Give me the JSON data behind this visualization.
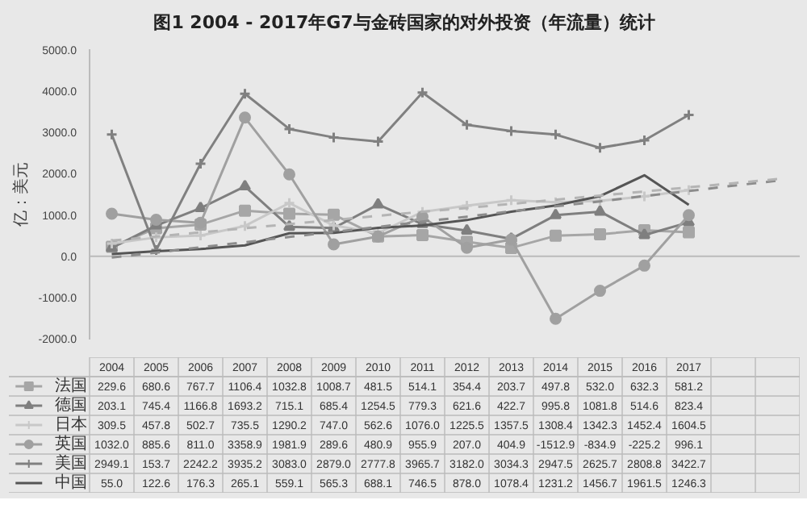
{
  "chart_data": {
    "type": "line",
    "title": "图1 2004 - 2017年G7与金砖国家的对外投资（年流量）统计",
    "ylabel": "亿：美元",
    "categories": [
      "2004",
      "2005",
      "2006",
      "2007",
      "2008",
      "2009",
      "2010",
      "2011",
      "2012",
      "2013",
      "2014",
      "2015",
      "2016",
      "2017",
      null,
      null
    ],
    "ylim": [
      -2000,
      5000
    ],
    "yticks": [
      {
        "value": -2000,
        "label": "-2000.0"
      },
      {
        "value": -1000,
        "label": "-1000.0"
      },
      {
        "value": 0,
        "label": "0.0"
      },
      {
        "value": 1000,
        "label": "1000.0"
      },
      {
        "value": 2000,
        "label": "2000.0"
      },
      {
        "value": 3000,
        "label": "3000.0"
      },
      {
        "value": 4000,
        "label": "4000.0"
      },
      {
        "value": 5000,
        "label": "5000.0"
      }
    ],
    "grid": false,
    "legend": "bottom",
    "ref_lines": [
      {
        "axis": "y",
        "value": 0,
        "color": "#bbbbbb",
        "line_style": "solid"
      }
    ],
    "series": [
      {
        "name": "法国",
        "color": "#a6a6a6",
        "marker": "square",
        "values": [
          229.6,
          680.6,
          767.7,
          1106.4,
          1032.8,
          1008.7,
          481.5,
          514.1,
          354.4,
          203.7,
          497.8,
          532.0,
          632.3,
          581.2,
          null,
          null
        ],
        "value_labels": [
          "229.6",
          "680.6",
          "767.7",
          "1106.4",
          "1032.8",
          "1008.7",
          "481.5",
          "514.1",
          "354.4",
          "203.7",
          "497.8",
          "532.0",
          "632.3",
          "581.2",
          null,
          null
        ]
      },
      {
        "name": "德国",
        "color": "#7f7f7f",
        "marker": "triangle",
        "values": [
          203.1,
          745.4,
          1166.8,
          1693.2,
          715.1,
          685.4,
          1254.5,
          779.3,
          621.6,
          422.7,
          995.8,
          1081.8,
          514.6,
          823.4,
          null,
          null
        ],
        "value_labels": [
          "203.1",
          "745.4",
          "1166.8",
          "1693.2",
          "715.1",
          "685.4",
          "1254.5",
          "779.3",
          "621.6",
          "422.7",
          "995.8",
          "1081.8",
          "514.6",
          "823.4",
          null,
          null
        ]
      },
      {
        "name": "日本",
        "color": "#c8c8c8",
        "marker": "cross",
        "values": [
          309.5,
          457.8,
          502.7,
          735.5,
          1290.2,
          747.0,
          562.6,
          1076.0,
          1225.5,
          1357.5,
          1308.4,
          1342.3,
          1452.4,
          1604.5,
          null,
          null
        ],
        "value_labels": [
          "309.5",
          "457.8",
          "502.7",
          "735.5",
          "1290.2",
          "747.0",
          "562.6",
          "1076.0",
          "1225.5",
          "1357.5",
          "1308.4",
          "1342.3",
          "1452.4",
          "1604.5",
          null,
          null
        ]
      },
      {
        "name": "英国",
        "color": "#a0a0a0",
        "marker": "circle",
        "values": [
          1032.0,
          885.6,
          811.0,
          3358.9,
          1981.9,
          289.6,
          480.9,
          955.9,
          207.0,
          404.9,
          -1512.9,
          -834.9,
          -225.2,
          996.1,
          null,
          null
        ],
        "value_labels": [
          "1032.0",
          "885.6",
          "811.0",
          "3358.9",
          "1981.9",
          "289.6",
          "480.9",
          "955.9",
          "207.0",
          "404.9",
          "-1512.9",
          "-834.9",
          "-225.2",
          "996.1",
          null,
          null
        ]
      },
      {
        "name": "美国",
        "color": "#808080",
        "marker": "cross",
        "values": [
          2949.1,
          153.7,
          2242.2,
          3935.2,
          3083.0,
          2879.0,
          2777.8,
          3965.7,
          3182.0,
          3034.3,
          2947.5,
          2625.7,
          2808.8,
          3422.7,
          null,
          null
        ],
        "value_labels": [
          "2949.1",
          "153.7",
          "2242.2",
          "3935.2",
          "3083.0",
          "2879.0",
          "2777.8",
          "3965.7",
          "3182.0",
          "3034.3",
          "2947.5",
          "2625.7",
          "2808.8",
          "3422.7",
          null,
          null
        ]
      },
      {
        "name": "中国",
        "color": "#555555",
        "marker": "none",
        "values": [
          55.0,
          122.6,
          176.3,
          265.1,
          559.1,
          565.3,
          688.1,
          746.5,
          878.0,
          1078.4,
          1231.2,
          1456.7,
          1961.5,
          1246.3,
          null,
          null
        ],
        "value_labels": [
          "55.0",
          "122.6",
          "176.3",
          "265.1",
          "559.1",
          "565.3",
          "688.1",
          "746.5",
          "878.0",
          "1078.4",
          "1231.2",
          "1456.7",
          "1961.5",
          "1246.3",
          null,
          null
        ]
      },
      {
        "type": "line",
        "line_style": "dashed",
        "color": "#8c8c8c",
        "marker": "none",
        "values": [
          -30,
          90,
          220,
          340,
          470,
          590,
          710,
          840,
          960,
          1090,
          1210,
          1330,
          1460,
          1580,
          1710,
          1830
        ]
      },
      {
        "type": "line",
        "line_style": "dashed",
        "color": "#b4b4b4",
        "marker": "none",
        "values": [
          380,
          480,
          580,
          680,
          780,
          880,
          980,
          1080,
          1170,
          1270,
          1370,
          1470,
          1570,
          1670,
          1770,
          1870
        ]
      }
    ]
  }
}
